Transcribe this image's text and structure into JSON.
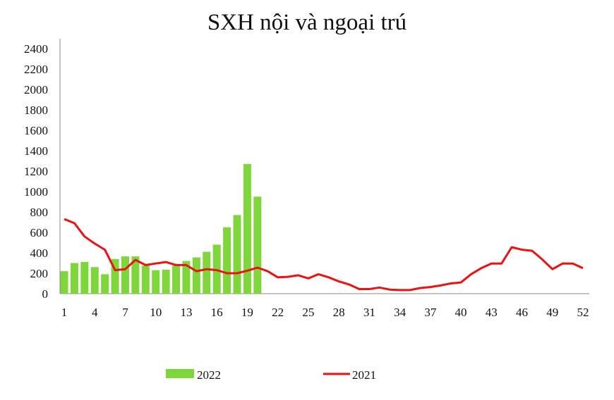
{
  "chart_data": {
    "type": "bar+line",
    "title": "SXH nội và ngoại trú",
    "xlabel": "",
    "ylabel": "",
    "ylim": [
      0,
      2400
    ],
    "yticks": [
      0,
      200,
      400,
      600,
      800,
      1000,
      1200,
      1400,
      1600,
      1800,
      2000,
      2200,
      2400
    ],
    "xticks": [
      1,
      4,
      7,
      10,
      13,
      16,
      19,
      22,
      25,
      28,
      31,
      34,
      37,
      40,
      43,
      46,
      49,
      52
    ],
    "xlim": [
      1,
      52
    ],
    "grid": false,
    "legend_position": "bottom",
    "series": [
      {
        "name": "2022",
        "type": "bar",
        "color": "#7ed63b",
        "x": [
          1,
          2,
          3,
          4,
          5,
          6,
          7,
          8,
          9,
          10,
          11,
          12,
          13,
          14,
          15,
          16,
          17,
          18,
          19,
          20
        ],
        "values": [
          220,
          300,
          310,
          260,
          190,
          340,
          365,
          365,
          275,
          230,
          235,
          275,
          320,
          355,
          410,
          480,
          650,
          770,
          1270,
          950
        ]
      },
      {
        "name": "2021",
        "type": "line",
        "color": "#ee1111",
        "x": [
          1,
          2,
          3,
          4,
          5,
          6,
          7,
          8,
          9,
          10,
          11,
          12,
          13,
          14,
          15,
          16,
          17,
          18,
          19,
          20,
          21,
          22,
          23,
          24,
          25,
          26,
          27,
          28,
          29,
          30,
          31,
          32,
          33,
          34,
          35,
          36,
          37,
          38,
          39,
          40,
          41,
          42,
          43,
          44,
          45,
          46,
          47,
          48,
          49,
          50,
          51,
          52
        ],
        "values": [
          730,
          690,
          560,
          490,
          430,
          230,
          240,
          330,
          280,
          295,
          310,
          280,
          280,
          220,
          240,
          230,
          200,
          200,
          225,
          255,
          220,
          160,
          165,
          180,
          150,
          190,
          160,
          120,
          90,
          45,
          45,
          60,
          40,
          35,
          35,
          55,
          65,
          80,
          100,
          110,
          190,
          250,
          295,
          295,
          455,
          430,
          420,
          335,
          240,
          295,
          295,
          250
        ]
      }
    ]
  }
}
